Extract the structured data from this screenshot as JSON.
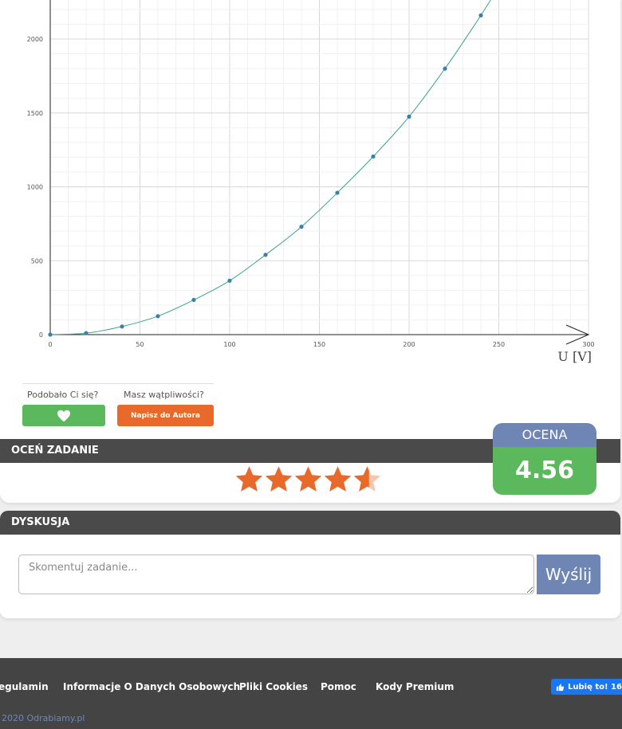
{
  "chart_data": {
    "type": "scatter",
    "xlabel": "U [V]",
    "ylabel": "",
    "xlim": [
      0,
      300
    ],
    "ylim": [
      0,
      2200
    ],
    "x_ticks": [
      0,
      50,
      100,
      150,
      200,
      250,
      300
    ],
    "y_ticks": [
      0,
      500,
      1000,
      1500,
      2000
    ],
    "grid": true,
    "series": [
      {
        "x": [
          0,
          20,
          40,
          60,
          80,
          100,
          120,
          140,
          160,
          180,
          200,
          220,
          240
        ],
        "values": [
          0,
          10,
          55,
          125,
          235,
          365,
          540,
          730,
          960,
          1205,
          1475,
          1800,
          2160
        ]
      }
    ],
    "colors": {
      "points": "#3d7fa8",
      "curve": "#3aa58a"
    }
  },
  "reaction": {
    "like_label": "Podobało Ci się?",
    "doubt_label": "Masz wątpliwości?",
    "write_button": "Napisz do Autora"
  },
  "rating": {
    "section_title": "OCEŃ ZADANIE",
    "score_title": "OCENA",
    "score_value": "4.56",
    "stars": 4.56
  },
  "discussion": {
    "section_title": "DYSKUSJA",
    "placeholder": "Skomentuj zadanie...",
    "send_button": "Wyślij"
  },
  "footer": {
    "links": [
      "egulamin",
      "Informacje O Danych Osobowych",
      "Pliki Cookies",
      "Pomoc",
      "Kody Premium"
    ],
    "fb_like": "Lubię to! 16",
    "copyright": "2020 Odrabiamy.pl"
  },
  "colors": {
    "accent_orange": "#e8692a",
    "accent_green": "#5cb85c",
    "accent_blue": "#6f86b4"
  }
}
